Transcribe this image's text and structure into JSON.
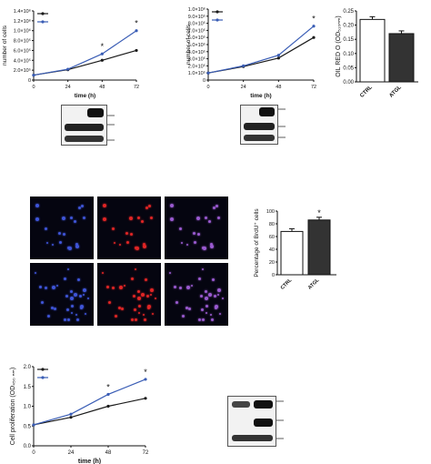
{
  "colors": {
    "ctrl": "#1a1a1a",
    "atgl": "#3a5db5",
    "dapi": "#3f55d8",
    "brdu": "#e02525",
    "merge": "#9a5ad0"
  },
  "chart_data": [
    {
      "type": "line",
      "ylabel": "number of cells",
      "xlabel": "time (h)",
      "x": [
        0,
        24,
        48,
        72
      ],
      "xticks": [
        "0",
        "24",
        "48",
        "72"
      ],
      "yticks": [
        "0",
        "2.0×10⁵",
        "4.0×10⁵",
        "6.0×10⁵",
        "8.0×10⁵",
        "1.0×10⁶",
        "1.2×10⁶",
        "1.4×10⁶"
      ],
      "ylim": [
        0,
        1400000
      ],
      "series": [
        {
          "values": [
            100000,
            210000,
            400000,
            600000
          ]
        },
        {
          "values": [
            100000,
            220000,
            530000,
            1000000
          ]
        }
      ],
      "annotations": [
        "*",
        "*"
      ]
    },
    {
      "type": "line",
      "ylabel": "number of cells",
      "xlabel": "time (h)",
      "x": [
        0,
        24,
        48,
        72
      ],
      "xticks": [
        "0",
        "24",
        "48",
        "72"
      ],
      "yticks": [
        "0",
        "1.0×10⁵",
        "2.0×10⁵",
        "3.0×10⁵",
        "4.0×10⁵",
        "5.0×10⁵",
        "6.0×10⁵",
        "7.0×10⁵",
        "8.0×10⁵",
        "9.0×10⁵",
        "1.0×10⁶"
      ],
      "ylim": [
        0,
        1000000
      ],
      "series": [
        {
          "values": [
            100000,
            190000,
            310000,
            600000
          ]
        },
        {
          "values": [
            100000,
            200000,
            350000,
            760000
          ]
        }
      ],
      "annotations": [
        "*"
      ]
    },
    {
      "type": "bar",
      "ylabel": "OIL RED O (OD₅₁₀ₙₘ)",
      "categories": [
        "CTRL",
        "ATGL"
      ],
      "values": [
        0.22,
        0.17
      ],
      "yticks": [
        "0.00",
        "0.05",
        "0.10",
        "0.15",
        "0.20",
        "0.25"
      ],
      "ylim": [
        0,
        0.25
      ]
    },
    {
      "type": "bar",
      "ylabel": "Percentage of BrdU⁺ cells",
      "categories": [
        "CTRL",
        "ATGL"
      ],
      "values": [
        68,
        86
      ],
      "yticks": [
        "0",
        "20",
        "40",
        "60",
        "80",
        "100"
      ],
      "ylim": [
        0,
        100
      ],
      "annotations": [
        "*"
      ]
    },
    {
      "type": "line",
      "ylabel": "Cell proliferation (OD₄₅₀ ₙₘ)",
      "xlabel": "time (h)",
      "x": [
        0,
        24,
        48,
        72
      ],
      "xticks": [
        "0",
        "24",
        "48",
        "72"
      ],
      "yticks": [
        "0.0",
        "0.5",
        "1.0",
        "1.5",
        "2.0"
      ],
      "ylim": [
        0,
        2.0
      ],
      "series": [
        {
          "values": [
            0.53,
            0.72,
            1.0,
            1.2
          ]
        },
        {
          "values": [
            0.53,
            0.8,
            1.3,
            1.68
          ]
        }
      ],
      "annotations": [
        "*",
        "*"
      ]
    }
  ]
}
